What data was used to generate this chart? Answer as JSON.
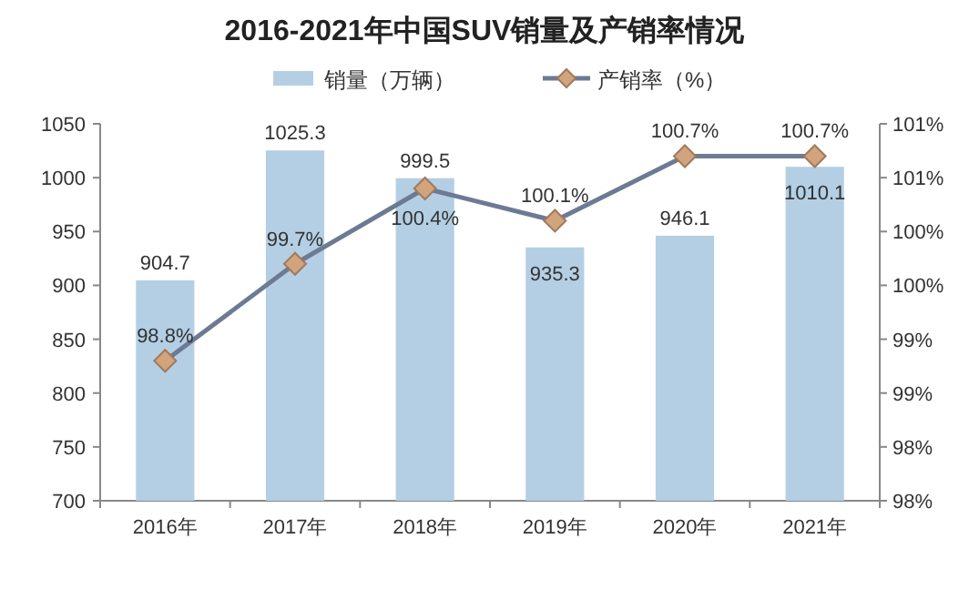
{
  "chart_data": {
    "type": "bar",
    "title": "2016-2021年中国SUV销量及产销率情况",
    "categories": [
      "2016年",
      "2017年",
      "2018年",
      "2019年",
      "2020年",
      "2021年"
    ],
    "series": [
      {
        "name": "销量（万辆）",
        "color": "#b4cfe4",
        "values": [
          904.7,
          1025.3,
          999.5,
          935.3,
          946.1,
          1010.1
        ]
      },
      {
        "name": "产销率（%）",
        "type": "line",
        "axis": "y2",
        "color": "#6d7a94",
        "marker": "diamond",
        "values": [
          98.8,
          99.7,
          100.4,
          100.1,
          100.7,
          100.7
        ],
        "value_labels": [
          "98.8%",
          "99.7%",
          "100.4%",
          "100.1%",
          "100.7%",
          "100.7%"
        ]
      }
    ],
    "ylim": [
      700,
      1050
    ],
    "yticks": [
      700,
      750,
      800,
      850,
      900,
      950,
      1000,
      1050
    ],
    "y2lim": [
      97.5,
      101.0
    ],
    "y2ticks": [
      {
        "value": 97.5,
        "label": "98%"
      },
      {
        "value": 98.0,
        "label": "98%"
      },
      {
        "value": 98.5,
        "label": "99%"
      },
      {
        "value": 99.0,
        "label": "99%"
      },
      {
        "value": 99.5,
        "label": "100%"
      },
      {
        "value": 100.0,
        "label": "100%"
      },
      {
        "value": 100.5,
        "label": "101%"
      },
      {
        "value": 101.0,
        "label": "101%"
      }
    ],
    "data_labels": true,
    "legend": "top",
    "grid": false
  }
}
